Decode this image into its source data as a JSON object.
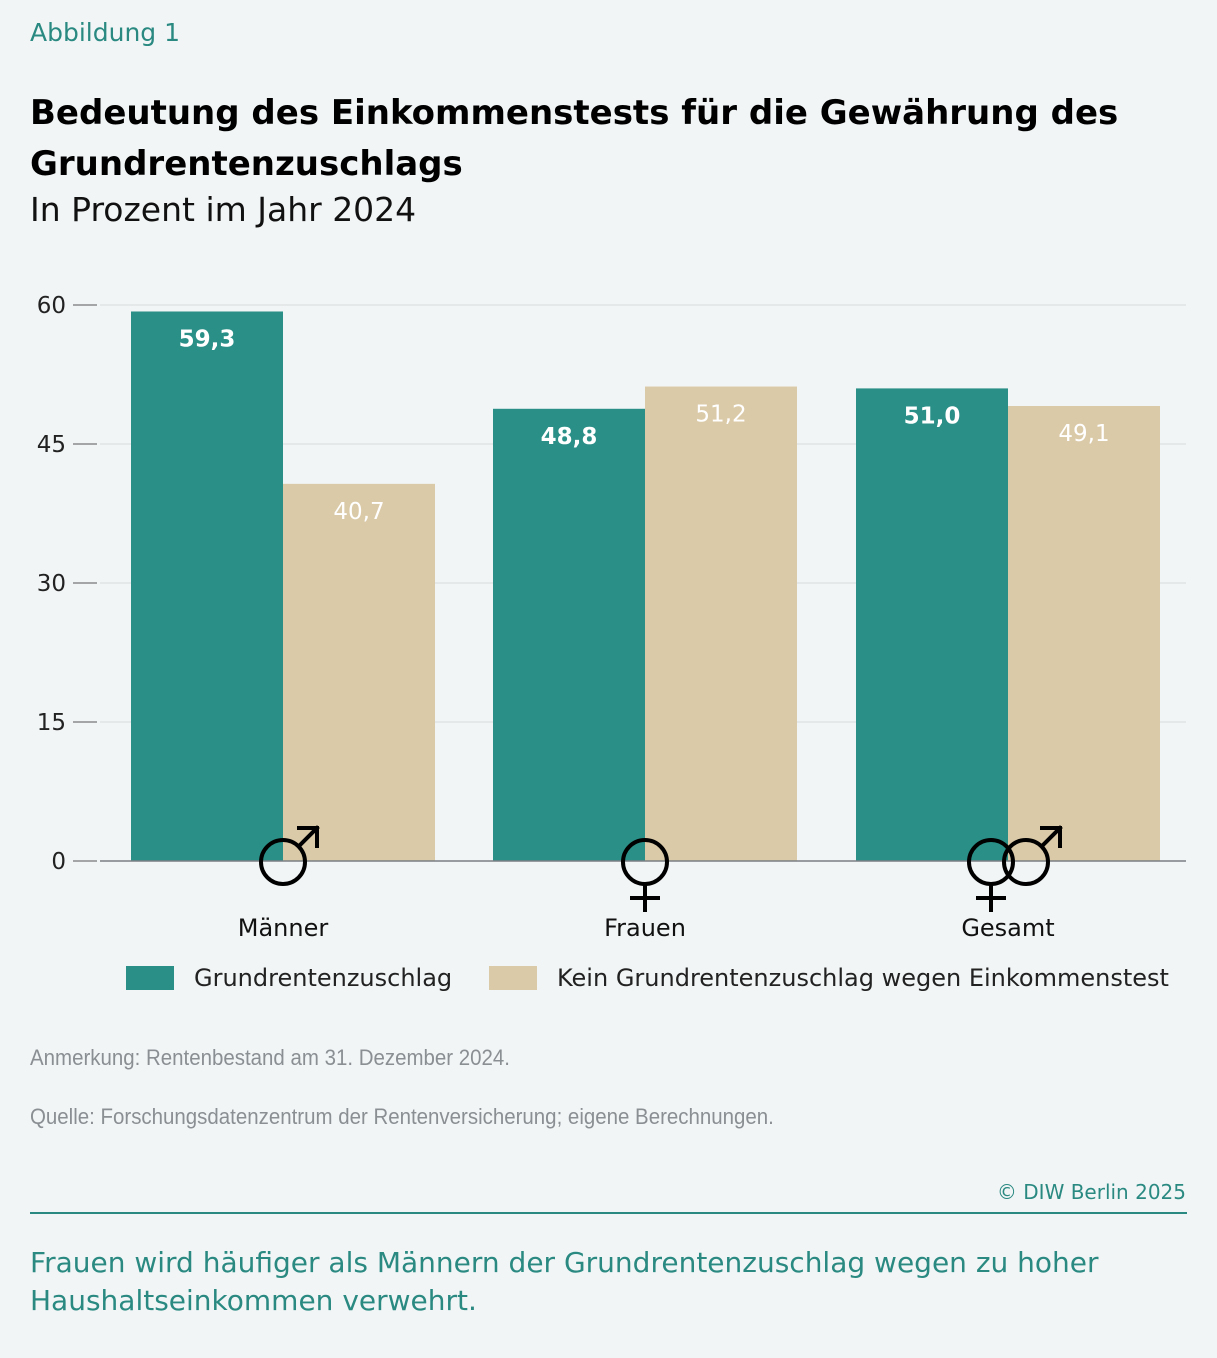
{
  "header": {
    "label": "Abbildung 1",
    "title": "Bedeutung des Einkommenstests für die Gewährung des Grundrentenzuschlags",
    "subtitle": "In Prozent im Jahr 2024"
  },
  "colors": {
    "series1": "#2a8f87",
    "series2": "#dbcaa8",
    "grid": "#d6dadc",
    "axis": "#555555"
  },
  "chart_data": {
    "type": "bar",
    "categories": [
      "Männer",
      "Frauen",
      "Gesamt"
    ],
    "category_icons": [
      "male-symbol-icon",
      "female-symbol-icon",
      "male-female-symbol-icon"
    ],
    "series": [
      {
        "name": "Grundrentenzuschlag",
        "values": [
          59.3,
          48.8,
          51.0
        ],
        "labels": [
          "59,3",
          "48,8",
          "51,0"
        ]
      },
      {
        "name": "Kein Grundrentenzuschlag wegen Einkommenstest",
        "values": [
          40.7,
          51.2,
          49.1
        ],
        "labels": [
          "40,7",
          "51,2",
          "49,1"
        ]
      }
    ],
    "yticks": [
      0,
      15,
      30,
      45,
      60
    ],
    "ylim": [
      0,
      60
    ],
    "grid": true,
    "legend_position": "bottom"
  },
  "notes": {
    "anmerkung": "Anmerkung: Rentenbestand am 31. Dezember 2024.",
    "quelle": "Quelle: Forschungsdatenzentrum der Rentenversicherung; eigene Berechnungen."
  },
  "copyright": "© DIW Berlin 2025",
  "takeaway": "Frauen wird häufiger als Männern der Grundrentenzuschlag wegen zu hoher Haushaltseinkommen verwehrt."
}
